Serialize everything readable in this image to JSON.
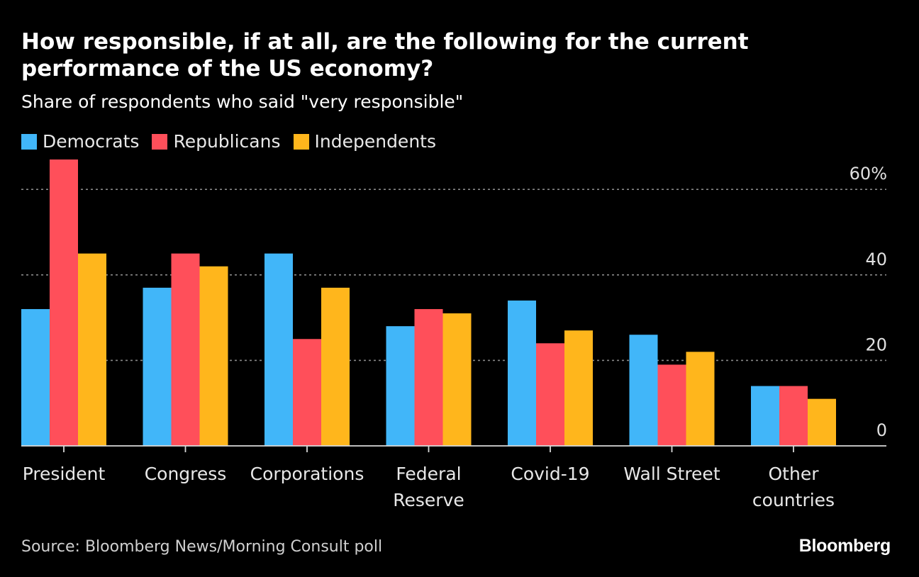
{
  "header": {
    "title": "How responsible, if at all, are the following for the current performance of the US economy?",
    "subtitle": "Share of respondents who said \"very responsible\""
  },
  "legend": [
    {
      "label": "Democrats",
      "color": "#41b6f9"
    },
    {
      "label": "Republicans",
      "color": "#ff4f5a"
    },
    {
      "label": "Independents",
      "color": "#ffb61c"
    }
  ],
  "footer": {
    "source": "Source: Bloomberg News/Morning Consult poll",
    "brand": "Bloomberg"
  },
  "chart_data": {
    "type": "bar",
    "title": "How responsible, if at all, are the following for the current performance of the US economy?",
    "subtitle": "Share of respondents who said \"very responsible\"",
    "categories": [
      [
        "President"
      ],
      [
        "Congress"
      ],
      [
        "Corporations"
      ],
      [
        "Federal",
        "Reserve"
      ],
      [
        "Covid-19"
      ],
      [
        "Wall Street"
      ],
      [
        "Other",
        "countries"
      ]
    ],
    "series": [
      {
        "name": "Democrats",
        "color": "#41b6f9",
        "values": [
          32,
          37,
          45,
          28,
          34,
          26,
          14
        ]
      },
      {
        "name": "Republicans",
        "color": "#ff4f5a",
        "values": [
          67,
          45,
          25,
          32,
          24,
          19,
          14
        ]
      },
      {
        "name": "Independents",
        "color": "#ffb61c",
        "values": [
          45,
          42,
          37,
          31,
          27,
          22,
          11
        ]
      }
    ],
    "ylim": [
      0,
      67
    ],
    "yticks": [
      0,
      20,
      40,
      60
    ],
    "ytick_labels": [
      "0",
      "20",
      "40",
      "60%"
    ],
    "grid": true,
    "legend_position": "top-left",
    "xlabel": "",
    "ylabel": ""
  }
}
